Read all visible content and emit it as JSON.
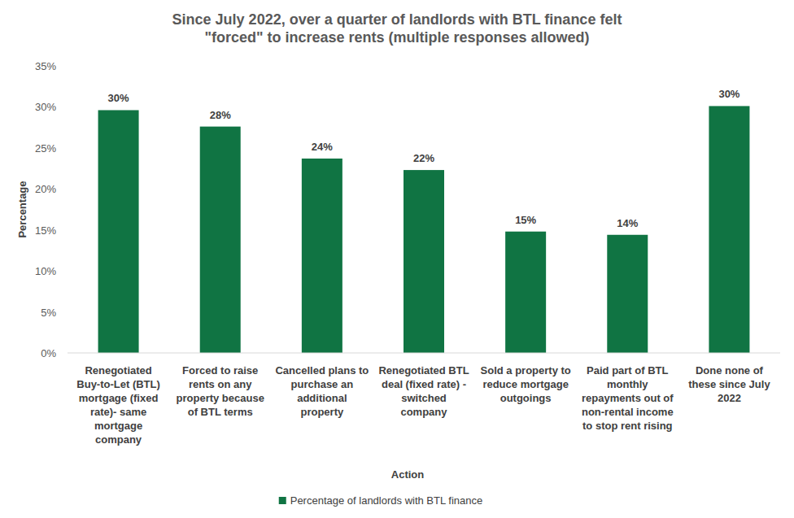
{
  "chart_data": {
    "type": "bar",
    "title": "Since July 2022, over a quarter of landlords with BTL finance felt \"forced\" to increase rents (multiple responses allowed)",
    "x_label": "Action",
    "y_label": "Percentage",
    "categories": [
      "Renegotiated Buy-to-Let (BTL) mortgage (fixed rate)- same mortgage company",
      "Forced to raise rents on any property because of BTL terms",
      "Cancelled plans to purchase an additional property",
      "Renegotiated BTL deal (fixed rate) - switched company",
      "Sold a property to reduce mortgage outgoings",
      "Paid part of BTL monthly repayments out of non-rental income to stop rent rising",
      "Done none of these since July 2022"
    ],
    "series": [
      {
        "name": "Percentage of landlords with BTL finance",
        "color": "#107443",
        "values": [
          29.6,
          27.6,
          23.7,
          22.3,
          14.8,
          14.4,
          30.1
        ],
        "value_labels": [
          "30%",
          "28%",
          "24%",
          "22%",
          "15%",
          "14%",
          "30%"
        ]
      }
    ],
    "ylim": [
      0,
      35
    ],
    "yticks": [
      {
        "value": 0,
        "label": "0%"
      },
      {
        "value": 5,
        "label": "5%"
      },
      {
        "value": 10,
        "label": "10%"
      },
      {
        "value": 15,
        "label": "15%"
      },
      {
        "value": 20,
        "label": "20%"
      },
      {
        "value": 25,
        "label": "25%"
      },
      {
        "value": 30,
        "label": "30%"
      },
      {
        "value": 35,
        "label": "35%"
      }
    ],
    "grid": false,
    "data_labels": true,
    "legend": "bottom"
  }
}
